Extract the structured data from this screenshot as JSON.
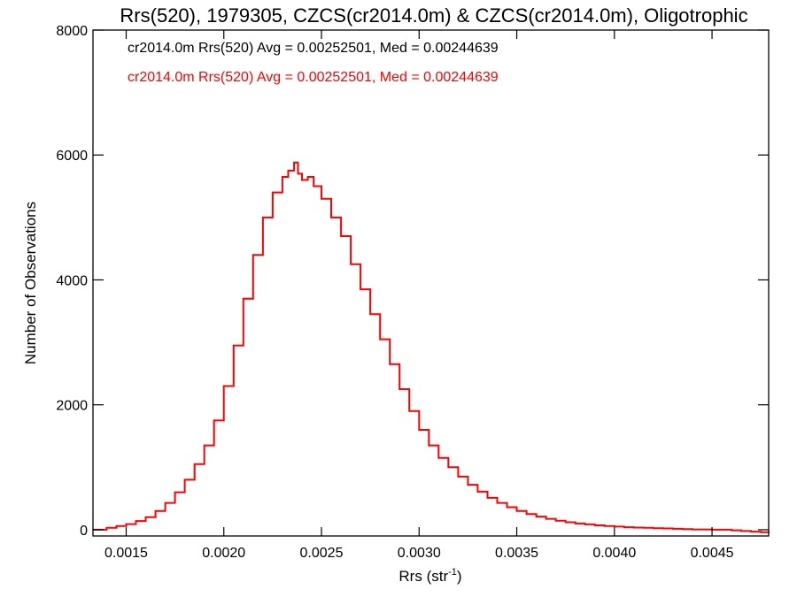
{
  "chart_data": {
    "type": "line",
    "step": true,
    "title": "Rrs(520), 1979305, CZCS(cr2014.0m) & CZCS(cr2014.0m), Oligotrophic",
    "xlabel": "Rrs (str",
    "xlabel_sup": "-1",
    "xlabel_close": ")",
    "ylabel": "Number of Observations",
    "xlim": [
      0.00133,
      0.00479
    ],
    "ylim": [
      -100,
      8000
    ],
    "xticks": [
      0.0015,
      0.002,
      0.0025,
      0.003,
      0.0035,
      0.004,
      0.0045
    ],
    "xtick_labels": [
      "0.0015",
      "0.0020",
      "0.0025",
      "0.0030",
      "0.0035",
      "0.0040",
      "0.0045"
    ],
    "yticks": [
      0,
      2000,
      4000,
      6000,
      8000
    ],
    "ytick_labels": [
      "0",
      "2000",
      "4000",
      "6000",
      "8000"
    ],
    "grid": false,
    "legend_position": "top-left",
    "annotations": [
      {
        "text": "cr2014.0m Rrs(520) Avg = 0.00252501, Med = 0.00244639",
        "color": "#000000"
      },
      {
        "text": "cr2014.0m Rrs(520) Avg = 0.00252501, Med = 0.00244639",
        "color": "#ff0000"
      }
    ],
    "series": [
      {
        "color": "#ff0000",
        "x": [
          0.00133,
          0.0014,
          0.00145,
          0.0015,
          0.00155,
          0.0016,
          0.00165,
          0.0017,
          0.00175,
          0.0018,
          0.00185,
          0.0019,
          0.00195,
          0.002,
          0.00205,
          0.0021,
          0.00215,
          0.0022,
          0.00225,
          0.0023,
          0.00233,
          0.00236,
          0.00238,
          0.0024,
          0.00243,
          0.00246,
          0.0025,
          0.00255,
          0.0026,
          0.00265,
          0.0027,
          0.00275,
          0.0028,
          0.00285,
          0.0029,
          0.00295,
          0.003,
          0.00305,
          0.0031,
          0.00315,
          0.0032,
          0.00325,
          0.0033,
          0.00335,
          0.0034,
          0.00345,
          0.0035,
          0.00355,
          0.0036,
          0.00365,
          0.0037,
          0.00375,
          0.0038,
          0.00385,
          0.0039,
          0.00395,
          0.004,
          0.00405,
          0.0041,
          0.00415,
          0.0042,
          0.00425,
          0.0043,
          0.00435,
          0.0044,
          0.00445,
          0.0045,
          0.00455,
          0.0046,
          0.00465,
          0.0047,
          0.00475,
          0.00479
        ],
        "y": [
          0,
          30,
          60,
          90,
          140,
          200,
          300,
          430,
          600,
          800,
          1050,
          1350,
          1750,
          2300,
          2950,
          3700,
          4400,
          5000,
          5400,
          5650,
          5750,
          5880,
          5700,
          5600,
          5650,
          5500,
          5300,
          5000,
          4700,
          4250,
          3850,
          3450,
          3050,
          2650,
          2250,
          1900,
          1600,
          1350,
          1150,
          1000,
          850,
          720,
          610,
          510,
          430,
          360,
          300,
          250,
          210,
          175,
          145,
          120,
          100,
          85,
          70,
          60,
          50,
          40,
          35,
          30,
          25,
          20,
          15,
          10,
          5,
          5,
          0,
          0,
          -10,
          -20,
          -30,
          -40,
          -50
        ]
      }
    ]
  }
}
